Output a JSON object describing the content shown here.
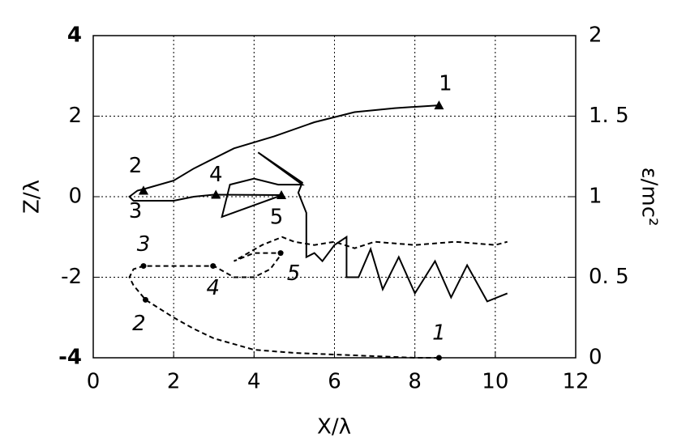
{
  "chart_data": {
    "type": "line",
    "xlabel": "X/λ",
    "ylabel": "Z/λ",
    "y2label": "ε/mc²",
    "xlim": [
      0,
      12
    ],
    "xticks": [
      0,
      2,
      4,
      6,
      8,
      10,
      12
    ],
    "ylim": [
      -4,
      4
    ],
    "yticks": [
      -4,
      -2,
      0,
      2,
      4
    ],
    "y2lim": [
      0,
      2
    ],
    "y2ticks": [
      0,
      {
        "value": 0.5,
        "label": "0. 5"
      },
      1,
      {
        "value": 1.5,
        "label": "1. 5"
      },
      2
    ],
    "grid": true,
    "series": [
      {
        "color": "#000000",
        "dash": false,
        "x": [
          8.6,
          7.5,
          6.5,
          5.5,
          4.5,
          3.5,
          2.5,
          2.0,
          1.3,
          1.1,
          0.9,
          1.0,
          1.5,
          2.0,
          2.5,
          3.0,
          4.7,
          3.2,
          3.4,
          4.0,
          4.6,
          5.2,
          4.1,
          5.2,
          5.1,
          5.3,
          5.3,
          5.5,
          5.7,
          6.0,
          6.3,
          6.3,
          6.6,
          6.9,
          7.2,
          7.6,
          8.0,
          8.5,
          8.9,
          9.3,
          9.8,
          10.3
        ],
        "values": [
          2.27,
          2.2,
          2.1,
          1.85,
          1.5,
          1.2,
          0.7,
          0.4,
          0.2,
          0.15,
          0.0,
          -0.1,
          -0.1,
          -0.1,
          0.0,
          0.05,
          0.04,
          -0.5,
          0.3,
          0.45,
          0.3,
          0.3,
          1.1,
          0.35,
          0.1,
          -0.4,
          -1.5,
          -1.4,
          -1.6,
          -1.2,
          -1.0,
          -2.0,
          -2.0,
          -1.3,
          -2.3,
          -1.5,
          -2.4,
          -1.6,
          -2.5,
          -1.7,
          -2.6,
          -2.4
        ],
        "marker_x": [
          8.6,
          1.25,
          1.25,
          3.05,
          4.68
        ],
        "marker_values": [
          2.27,
          0.15,
          0.15,
          0.05,
          0.04
        ],
        "marker_labels": [
          "1",
          "2",
          "3",
          "4",
          "5"
        ]
      },
      {
        "color": "#000000",
        "dash": true,
        "axis": "y2",
        "x": [
          8.6,
          8.0,
          7.0,
          6.0,
          5.0,
          4.0,
          3.0,
          2.5,
          2.0,
          1.3,
          1.0,
          0.9,
          1.0,
          1.25,
          2.0,
          3.0,
          3.5,
          4.0,
          4.4,
          4.7,
          4.0,
          3.5,
          4.2,
          4.7,
          5.0,
          5.5,
          6.0,
          6.5,
          7.0,
          8.0,
          9.0,
          10.0,
          10.3
        ],
        "values": [
          0.0,
          0.0,
          0.01,
          0.02,
          0.03,
          0.05,
          0.12,
          0.18,
          0.25,
          0.36,
          0.45,
          0.5,
          0.55,
          0.57,
          0.57,
          0.57,
          0.5,
          0.5,
          0.55,
          0.65,
          0.65,
          0.6,
          0.7,
          0.75,
          0.72,
          0.7,
          0.72,
          0.68,
          0.72,
          0.7,
          0.72,
          0.7,
          0.72
        ],
        "marker_x": [
          8.6,
          1.3,
          1.25,
          2.98,
          4.66
        ],
        "marker_values": [
          0.0,
          0.36,
          0.57,
          0.57,
          0.65
        ],
        "marker_labels": [
          "1",
          "2",
          "3",
          "4",
          "5"
        ]
      }
    ]
  }
}
